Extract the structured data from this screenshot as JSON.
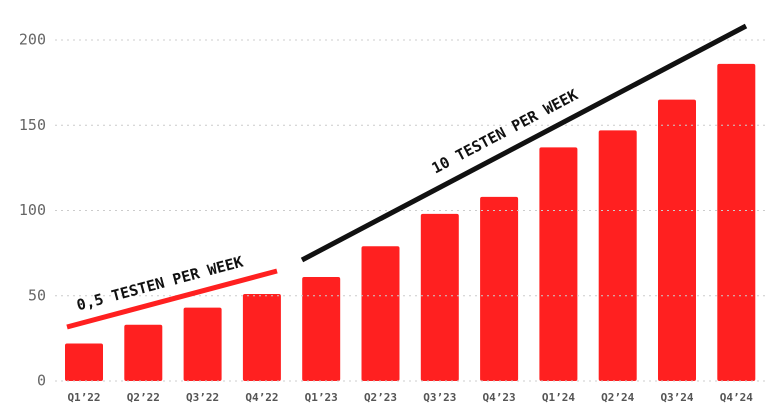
{
  "chart_data": {
    "type": "bar",
    "categories": [
      "Q1’22",
      "Q2’22",
      "Q3’22",
      "Q4’22",
      "Q1’23",
      "Q2’23",
      "Q3’23",
      "Q4’23",
      "Q1’24",
      "Q2’24",
      "Q3’24",
      "Q4’24"
    ],
    "values": [
      22,
      33,
      43,
      51,
      61,
      79,
      98,
      108,
      137,
      147,
      165,
      186
    ],
    "color": "#ff2020",
    "ylim": [
      0,
      200
    ],
    "yticks": [
      0,
      50,
      100,
      150,
      200
    ],
    "grid": true,
    "annotations": [
      "0,5 TESTEN PER WEEK",
      "10 TESTEN PER WEEK"
    ]
  }
}
